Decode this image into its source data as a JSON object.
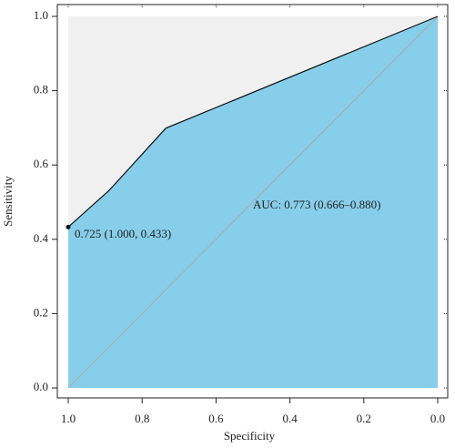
{
  "chart_data": {
    "type": "roc",
    "x_label": "Specificity",
    "y_label": "Sensitivity",
    "x": [
      1.0,
      0.889,
      0.736,
      0.0
    ],
    "values": [
      0.433,
      0.532,
      0.699,
      1.0
    ],
    "color": "#87ceeb",
    "upper_color": "#f0f0f0",
    "diagonal_color": "#aaaaaa",
    "xlim": [
      1.0,
      0.0
    ],
    "ylim": [
      0.0,
      1.0
    ],
    "xticks": [
      {
        "value": 1.0,
        "label": "1.0"
      },
      0.8,
      0.6,
      0.4,
      0.2,
      {
        "value": 0.0,
        "label": "0.0"
      }
    ],
    "yticks": [
      {
        "value": 0.0,
        "label": "0.0"
      },
      0.2,
      0.4,
      0.6,
      0.8,
      {
        "value": 1.0,
        "label": "1.0"
      }
    ],
    "annotations": [
      {
        "text": "AUC: 0.773 (0.666–0.880)"
      },
      {
        "text": "0.725 (1.000, 0.433)"
      }
    ]
  }
}
